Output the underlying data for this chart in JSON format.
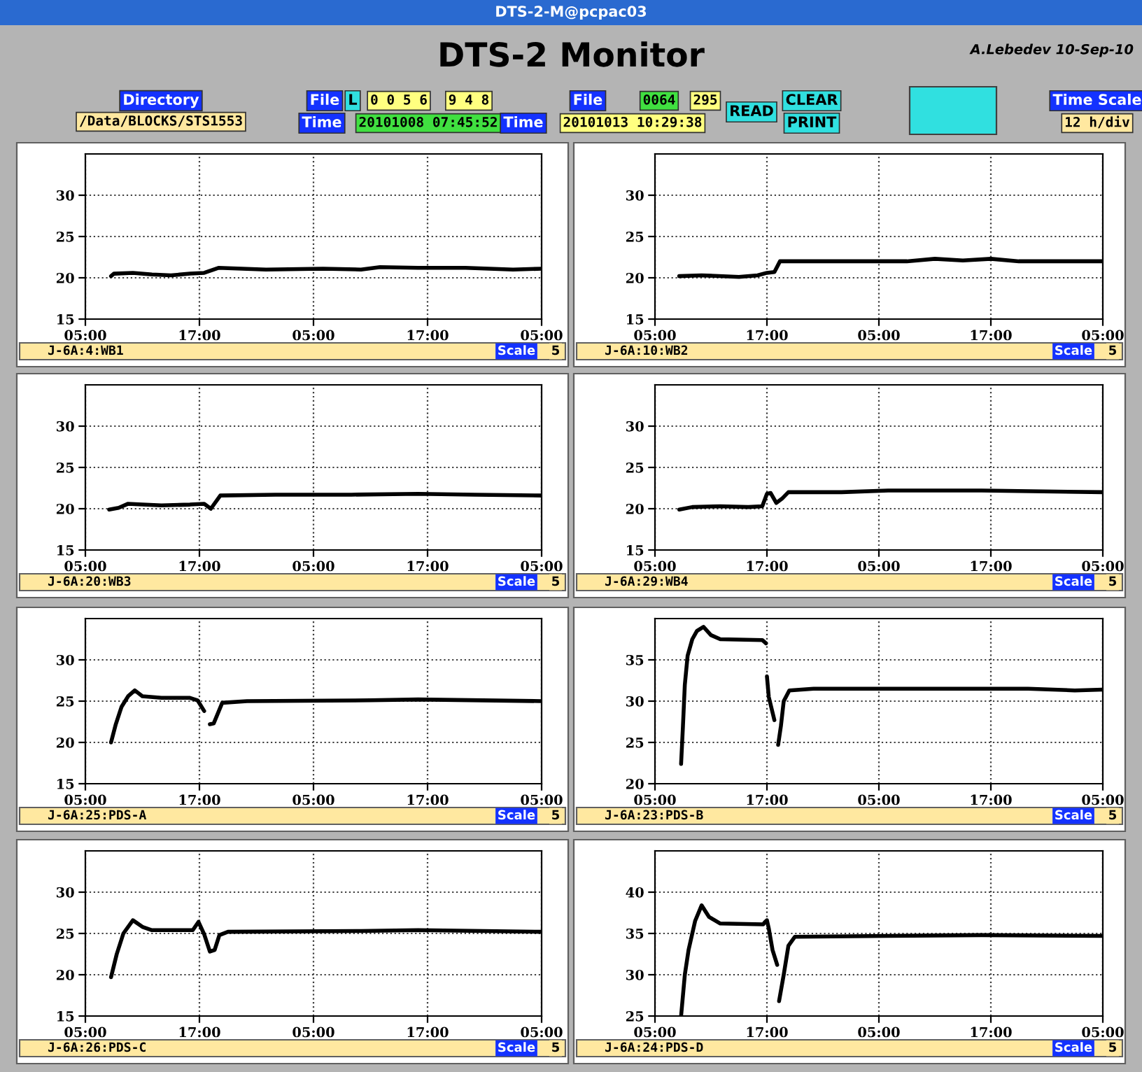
{
  "chart_data": [
    {
      "type": "other",
      "title": "DTS-2 Monitor",
      "annotations": [
        "DTS-2-M@pcpac03",
        "A.Lebedev 10-Sep-10",
        "Directory",
        "/Data/BLOCKS/STS1553",
        "File",
        "L",
        "0 0 5 6",
        "9 4 8",
        "Time",
        "20101008 07:45:52",
        "File",
        "0064",
        "295",
        "Time",
        "20101013 10:29:38",
        "READ",
        "CLEAR",
        "PRINT",
        "Time Scale",
        "12 h/div"
      ]
    },
    {
      "type": "line",
      "xlabel": "J-6A:4:WB1",
      "annotations": [
        "Scale",
        "5"
      ],
      "xlim": [
        "2010-10-08T05:00",
        "2010-10-10T05:00"
      ],
      "xticks": [
        {
          "value": "2010-10-08T05:00",
          "label": "05:00"
        },
        {
          "value": "2010-10-08T17:00",
          "label": "17:00"
        },
        {
          "value": "2010-10-09T05:00",
          "label": "05:00"
        },
        {
          "value": "2010-10-09T17:00",
          "label": "17:00"
        },
        {
          "value": "2010-10-10T05:00",
          "label": "05:00"
        }
      ],
      "ylim": [
        15,
        35
      ],
      "yticks": [
        15,
        20,
        25,
        30
      ],
      "grid": true,
      "series": [
        {
          "color": "#000000",
          "x": [
            "2010-10-08T07:42",
            "2010-10-08T08:00",
            "2010-10-08T10:00",
            "2010-10-08T12:00",
            "2010-10-08T14:00",
            "2010-10-08T16:00",
            "2010-10-08T17:30",
            "2010-10-08T19:00",
            "2010-10-09T00:00",
            "2010-10-09T06:00",
            "2010-10-09T10:00",
            "2010-10-09T12:00",
            "2010-10-09T16:00",
            "2010-10-09T21:00",
            "2010-10-10T02:00",
            "2010-10-10T05:00"
          ],
          "values": [
            20.2,
            20.5,
            20.6,
            20.4,
            20.3,
            20.5,
            20.6,
            21.2,
            21.0,
            21.1,
            21.0,
            21.3,
            21.2,
            21.2,
            21.0,
            21.1
          ]
        }
      ]
    },
    {
      "type": "line",
      "xlabel": "J-6A:10:WB2",
      "annotations": [
        "Scale",
        "5"
      ],
      "xlim": [
        "2010-10-08T05:00",
        "2010-10-10T05:00"
      ],
      "xticks": [
        {
          "value": "2010-10-08T05:00",
          "label": "05:00"
        },
        {
          "value": "2010-10-08T17:00",
          "label": "17:00"
        },
        {
          "value": "2010-10-09T05:00",
          "label": "05:00"
        },
        {
          "value": "2010-10-09T17:00",
          "label": "17:00"
        },
        {
          "value": "2010-10-10T05:00",
          "label": "05:00"
        }
      ],
      "ylim": [
        15,
        35
      ],
      "yticks": [
        15,
        20,
        25,
        30
      ],
      "grid": true,
      "series": [
        {
          "color": "#000000",
          "x": [
            "2010-10-08T07:36",
            "2010-10-08T10:00",
            "2010-10-08T14:00",
            "2010-10-08T16:00",
            "2010-10-08T17:00",
            "2010-10-08T17:48",
            "2010-10-08T18:24",
            "2010-10-09T01:00",
            "2010-10-09T08:00",
            "2010-10-09T11:00",
            "2010-10-09T14:00",
            "2010-10-09T17:00",
            "2010-10-09T20:00",
            "2010-10-10T05:00"
          ],
          "values": [
            20.2,
            20.3,
            20.1,
            20.3,
            20.6,
            20.7,
            22.0,
            22.0,
            22.0,
            22.3,
            22.1,
            22.3,
            22.0,
            22.0
          ]
        }
      ]
    },
    {
      "type": "line",
      "xlabel": "J-6A:20:WB3",
      "annotations": [
        "Scale",
        "5"
      ],
      "xlim": [
        "2010-10-08T05:00",
        "2010-10-10T05:00"
      ],
      "xticks": [
        {
          "value": "2010-10-08T05:00",
          "label": "05:00"
        },
        {
          "value": "2010-10-08T17:00",
          "label": "17:00"
        },
        {
          "value": "2010-10-09T05:00",
          "label": "05:00"
        },
        {
          "value": "2010-10-09T17:00",
          "label": "17:00"
        },
        {
          "value": "2010-10-10T05:00",
          "label": "05:00"
        }
      ],
      "ylim": [
        15,
        35
      ],
      "yticks": [
        15,
        20,
        25,
        30
      ],
      "grid": true,
      "series": [
        {
          "color": "#000000",
          "x": [
            "2010-10-08T07:30",
            "2010-10-08T08:30",
            "2010-10-08T09:30",
            "2010-10-08T11:00",
            "2010-10-08T13:00",
            "2010-10-08T16:00",
            "2010-10-08T17:30",
            "2010-10-08T18:12",
            "2010-10-08T19:12",
            "2010-10-09T01:00",
            "2010-10-09T09:00",
            "2010-10-09T16:00",
            "2010-10-09T22:00",
            "2010-10-10T05:00"
          ],
          "values": [
            19.9,
            20.1,
            20.6,
            20.5,
            20.4,
            20.5,
            20.6,
            20.0,
            21.6,
            21.7,
            21.7,
            21.8,
            21.7,
            21.6
          ]
        }
      ]
    },
    {
      "type": "line",
      "xlabel": "J-6A:29:WB4",
      "annotations": [
        "Scale",
        "5"
      ],
      "xlim": [
        "2010-10-08T05:00",
        "2010-10-10T05:00"
      ],
      "xticks": [
        {
          "value": "2010-10-08T05:00",
          "label": "05:00"
        },
        {
          "value": "2010-10-08T17:00",
          "label": "17:00"
        },
        {
          "value": "2010-10-09T05:00",
          "label": "05:00"
        },
        {
          "value": "2010-10-09T17:00",
          "label": "17:00"
        },
        {
          "value": "2010-10-10T05:00",
          "label": "05:00"
        }
      ],
      "ylim": [
        15,
        35
      ],
      "yticks": [
        15,
        20,
        25,
        30
      ],
      "grid": true,
      "series": [
        {
          "color": "#000000",
          "x": [
            "2010-10-08T07:36",
            "2010-10-08T09:00",
            "2010-10-08T12:00",
            "2010-10-08T15:00",
            "2010-10-08T16:30",
            "2010-10-08T17:00",
            "2010-10-08T17:24",
            "2010-10-08T18:00",
            "2010-10-08T18:36",
            "2010-10-08T19:18",
            "2010-10-09T01:00",
            "2010-10-09T06:00",
            "2010-10-09T16:00",
            "2010-10-10T05:00"
          ],
          "values": [
            19.9,
            20.2,
            20.3,
            20.2,
            20.3,
            21.8,
            21.9,
            20.7,
            21.2,
            22.0,
            22.0,
            22.2,
            22.2,
            22.0
          ]
        }
      ]
    },
    {
      "type": "line",
      "xlabel": "J-6A:25:PDS-A",
      "annotations": [
        "Scale",
        "5"
      ],
      "xlim": [
        "2010-10-08T05:00",
        "2010-10-10T05:00"
      ],
      "xticks": [
        {
          "value": "2010-10-08T05:00",
          "label": "05:00"
        },
        {
          "value": "2010-10-08T17:00",
          "label": "17:00"
        },
        {
          "value": "2010-10-09T05:00",
          "label": "05:00"
        },
        {
          "value": "2010-10-09T17:00",
          "label": "17:00"
        },
        {
          "value": "2010-10-10T05:00",
          "label": "05:00"
        }
      ],
      "ylim": [
        15,
        35
      ],
      "yticks": [
        15,
        20,
        25,
        30
      ],
      "grid": true,
      "series": [
        {
          "color": "#000000",
          "x": [
            "2010-10-08T07:42",
            "2010-10-08T08:12",
            "2010-10-08T08:48",
            "2010-10-08T09:30",
            "2010-10-08T10:12",
            "2010-10-08T11:00",
            "2010-10-08T13:00",
            "2010-10-08T16:00",
            "2010-10-08T16:48",
            "2010-10-08T17:30",
            "2010-10-08T17:48",
            "2010-10-08T18:06",
            "2010-10-08T18:30",
            "2010-10-08T19:24",
            "2010-10-08T22:00",
            "2010-10-09T11:00",
            "2010-10-09T16:00",
            "2010-10-10T05:00"
          ],
          "values": [
            20.0,
            22.2,
            24.3,
            25.6,
            26.3,
            25.6,
            25.4,
            25.4,
            25.1,
            23.8,
            null,
            22.2,
            22.3,
            24.8,
            25.0,
            25.1,
            25.2,
            25.0
          ]
        }
      ]
    },
    {
      "type": "line",
      "xlabel": "J-6A:23:PDS-B",
      "annotations": [
        "Scale",
        "5"
      ],
      "xlim": [
        "2010-10-08T05:00",
        "2010-10-10T05:00"
      ],
      "xticks": [
        {
          "value": "2010-10-08T05:00",
          "label": "05:00"
        },
        {
          "value": "2010-10-08T17:00",
          "label": "17:00"
        },
        {
          "value": "2010-10-09T05:00",
          "label": "05:00"
        },
        {
          "value": "2010-10-09T17:00",
          "label": "17:00"
        },
        {
          "value": "2010-10-10T05:00",
          "label": "05:00"
        }
      ],
      "ylim": [
        20,
        40
      ],
      "yticks": [
        20,
        25,
        30,
        35
      ],
      "grid": true,
      "series": [
        {
          "color": "#000000",
          "x": [
            "2010-10-08T07:48",
            "2010-10-08T08:00",
            "2010-10-08T08:12",
            "2010-10-08T08:30",
            "2010-10-08T09:00",
            "2010-10-08T09:30",
            "2010-10-08T10:12",
            "2010-10-08T11:00",
            "2010-10-08T12:00",
            "2010-10-08T16:30",
            "2010-10-08T16:54",
            "2010-10-08T16:57",
            "2010-10-08T17:00",
            "2010-10-08T17:12",
            "2010-10-08T17:48",
            "2010-10-08T18:00",
            "2010-10-08T18:12",
            "2010-10-08T18:30",
            "2010-10-08T18:48",
            "2010-10-08T19:24",
            "2010-10-08T22:00",
            "2010-10-09T11:00",
            "2010-10-09T21:00",
            "2010-10-10T02:00",
            "2010-10-10T05:00"
          ],
          "values": [
            22.4,
            27,
            32,
            35.5,
            37.5,
            38.5,
            39.0,
            38,
            37.5,
            37.4,
            37.0,
            null,
            33,
            30.5,
            27.7,
            null,
            24.7,
            27,
            30,
            31.3,
            31.5,
            31.5,
            31.5,
            31.3,
            31.4
          ]
        }
      ]
    },
    {
      "type": "line",
      "xlabel": "J-6A:26:PDS-C",
      "annotations": [
        "Scale",
        "5"
      ],
      "xlim": [
        "2010-10-08T05:00",
        "2010-10-10T05:00"
      ],
      "xticks": [
        {
          "value": "2010-10-08T05:00",
          "label": "05:00"
        },
        {
          "value": "2010-10-08T17:00",
          "label": "17:00"
        },
        {
          "value": "2010-10-09T05:00",
          "label": "05:00"
        },
        {
          "value": "2010-10-09T17:00",
          "label": "17:00"
        },
        {
          "value": "2010-10-10T05:00",
          "label": "05:00"
        }
      ],
      "ylim": [
        15,
        35
      ],
      "yticks": [
        15,
        20,
        25,
        30
      ],
      "grid": true,
      "series": [
        {
          "color": "#000000",
          "x": [
            "2010-10-08T07:42",
            "2010-10-08T08:18",
            "2010-10-08T09:00",
            "2010-10-08T10:00",
            "2010-10-08T11:00",
            "2010-10-08T12:00",
            "2010-10-08T16:18",
            "2010-10-08T16:54",
            "2010-10-08T17:30",
            "2010-10-08T18:06",
            "2010-10-08T18:36",
            "2010-10-08T19:06",
            "2010-10-08T20:00",
            "2010-10-09T10:00",
            "2010-10-09T16:00",
            "2010-10-10T05:00"
          ],
          "values": [
            19.7,
            22.5,
            25,
            26.6,
            25.8,
            25.4,
            25.4,
            26.4,
            24.9,
            22.8,
            23.0,
            24.8,
            25.2,
            25.3,
            25.4,
            25.2
          ]
        }
      ]
    },
    {
      "type": "line",
      "xlabel": "J-6A:24:PDS-D",
      "annotations": [
        "Scale",
        "5"
      ],
      "xlim": [
        "2010-10-08T05:00",
        "2010-10-10T05:00"
      ],
      "xticks": [
        {
          "value": "2010-10-08T05:00",
          "label": "05:00"
        },
        {
          "value": "2010-10-08T17:00",
          "label": "17:00"
        },
        {
          "value": "2010-10-09T05:00",
          "label": "05:00"
        },
        {
          "value": "2010-10-09T17:00",
          "label": "17:00"
        },
        {
          "value": "2010-10-10T05:00",
          "label": "05:00"
        }
      ],
      "ylim": [
        25,
        45
      ],
      "yticks": [
        25,
        30,
        35,
        40
      ],
      "grid": true,
      "series": [
        {
          "color": "#000000",
          "x": [
            "2010-10-08T07:48",
            "2010-10-08T08:12",
            "2010-10-08T08:36",
            "2010-10-08T09:18",
            "2010-10-08T10:00",
            "2010-10-08T10:48",
            "2010-10-08T12:00",
            "2010-10-08T16:36",
            "2010-10-08T16:48",
            "2010-10-08T17:00",
            "2010-10-08T17:12",
            "2010-10-08T17:36",
            "2010-10-08T18:06",
            "2010-10-08T18:12",
            "2010-10-08T18:18",
            "2010-10-08T18:48",
            "2010-10-08T19:18",
            "2010-10-08T20:00",
            "2010-10-09T06:00",
            "2010-10-09T16:00",
            "2010-10-10T05:00"
          ],
          "values": [
            25,
            30,
            33,
            36.5,
            38.4,
            37,
            36.2,
            36.1,
            36.4,
            36.6,
            35.6,
            33,
            31.2,
            null,
            26.8,
            30,
            33.5,
            34.6,
            34.7,
            34.8,
            34.7
          ]
        }
      ]
    }
  ]
}
